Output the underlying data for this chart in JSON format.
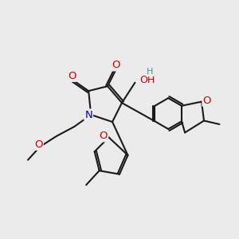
{
  "bg_color": "#ebebeb",
  "bond_color": "#1a1a1a",
  "bond_width": 1.5,
  "atom_colors": {
    "O": "#cc0000",
    "N": "#0000cc",
    "H": "#4a9090",
    "C": "#1a1a1a"
  },
  "font_size_atom": 9.5,
  "font_size_small": 8
}
